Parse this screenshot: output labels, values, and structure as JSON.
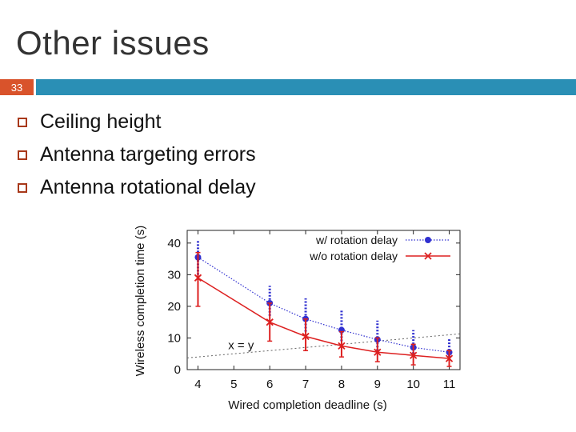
{
  "slide": {
    "title": "Other issues",
    "number": "33",
    "bullets": [
      "Ceiling height",
      "Antenna targeting errors",
      "Antenna rotational delay"
    ]
  },
  "colors": {
    "accent_bar": "#2a8fb5",
    "number_box": "#d9532b",
    "bullet_box": "#a8381a",
    "series_rotation": "#3030d0",
    "series_no_rotation": "#dd2020"
  },
  "chart_data": {
    "type": "line",
    "xlabel": "Wired completion deadline (s)",
    "ylabel": "Wireless completion time (s)",
    "x_ticks": [
      4,
      5,
      6,
      7,
      8,
      9,
      10,
      11
    ],
    "y_ticks": [
      0,
      10,
      20,
      30,
      40
    ],
    "xlim": [
      3.7,
      11.3
    ],
    "ylim": [
      0,
      44
    ],
    "grid": false,
    "legend_position": "top-right",
    "annotation": "x = y",
    "reference_line": {
      "x": [
        3.7,
        11.3
      ],
      "y": [
        3.7,
        11.3
      ]
    },
    "series": [
      {
        "name": "w/ rotation delay",
        "marker": "circle",
        "line_style": "dotted",
        "x": [
          4,
          6,
          7,
          8,
          9,
          10,
          11
        ],
        "y": [
          35.5,
          21,
          16,
          12.5,
          9.5,
          7,
          5.5
        ],
        "err_low": [
          30,
          17,
          12,
          9,
          6,
          4,
          3
        ],
        "err_high": [
          41,
          26.5,
          22.5,
          19,
          15.5,
          12.5,
          10
        ]
      },
      {
        "name": "w/o rotation delay",
        "marker": "x",
        "line_style": "solid",
        "x": [
          4,
          6,
          7,
          8,
          9,
          10,
          11
        ],
        "y": [
          29,
          15,
          10.5,
          7.5,
          5.5,
          4.5,
          3.5
        ],
        "err_low": [
          20,
          9,
          6,
          4,
          2.5,
          1.5,
          1
        ],
        "err_high": [
          37,
          21,
          16,
          12,
          10,
          8,
          6
        ]
      }
    ]
  }
}
